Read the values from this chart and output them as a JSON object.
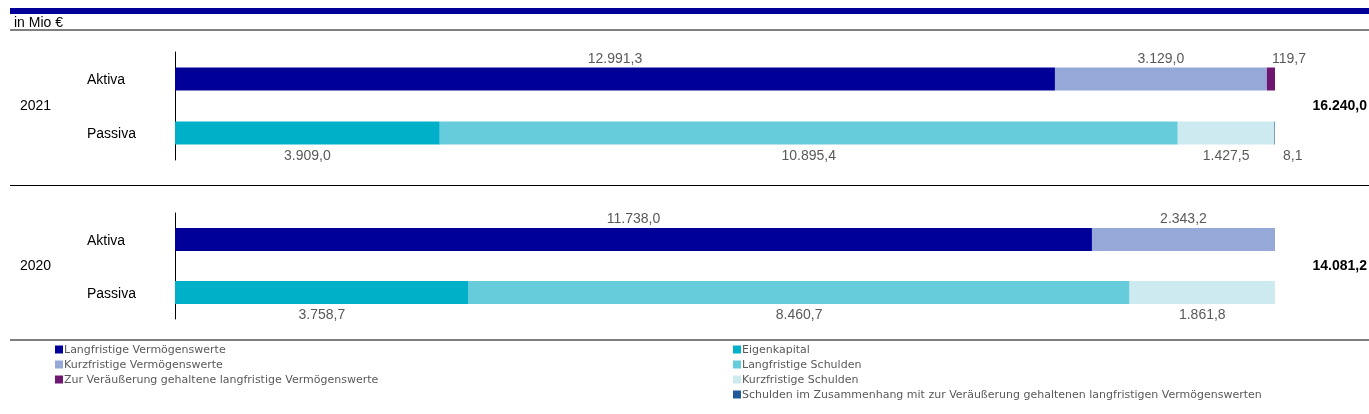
{
  "chart_data": [
    {
      "type": "bar",
      "orientation": "horizontal",
      "stacked": true,
      "subtitle": "in Mio €",
      "ylabel": "2021",
      "tick_labels": "y",
      "legend": false,
      "annotations": [
        "16.240,0"
      ],
      "categories": [
        "Aktiva",
        "Passiva"
      ],
      "series": [
        {
          "color": "#000099",
          "values": [
            12991.3,
            null
          ],
          "value_labels": [
            "12.991,3",
            null
          ]
        },
        {
          "color": "#96a8d8",
          "values": [
            3129.0,
            null
          ],
          "value_labels": [
            "3.129,0",
            null
          ]
        },
        {
          "color": "#6f1770",
          "values": [
            119.7,
            null
          ],
          "value_labels": [
            "119,7",
            null
          ]
        },
        {
          "color": "#00b0c8",
          "values": [
            null,
            3909.0
          ],
          "value_labels": [
            null,
            "3.909,0"
          ]
        },
        {
          "color": "#66ccdb",
          "values": [
            null,
            10895.4
          ],
          "value_labels": [
            null,
            "10.895,4"
          ]
        },
        {
          "color": "#cceaf0",
          "values": [
            null,
            1427.5
          ],
          "value_labels": [
            null,
            "1.427,5"
          ]
        },
        {
          "color": "#1f5b99",
          "values": [
            null,
            8.1
          ],
          "value_labels": [
            null,
            "8,1"
          ]
        }
      ]
    },
    {
      "type": "bar",
      "orientation": "horizontal",
      "stacked": true,
      "ylabel": "2020",
      "tick_labels": "y",
      "legend": "bottom",
      "annotations": [
        "14.081,2"
      ],
      "categories": [
        "Aktiva",
        "Passiva"
      ],
      "series": [
        {
          "name": "Langfristige Vermögenswerte",
          "color": "#000099",
          "values": [
            11738.0,
            null
          ],
          "value_labels": [
            "11.738,0",
            null
          ]
        },
        {
          "name": "Kurzfristige Vermögenswerte",
          "color": "#96a8d8",
          "values": [
            2343.2,
            null
          ],
          "value_labels": [
            "2.343,2",
            null
          ]
        },
        {
          "name": "Zur Veräußerung gehaltene langfristige Vermögenswerte",
          "color": "#6f1770",
          "values": [
            null,
            null
          ],
          "value_labels": [
            null,
            null
          ]
        },
        {
          "name": "Eigenkapital",
          "color": "#00b0c8",
          "values": [
            null,
            3758.7
          ],
          "value_labels": [
            null,
            "3.758,7"
          ]
        },
        {
          "name": "Langfristige Schulden",
          "color": "#66ccdb",
          "values": [
            null,
            8460.7
          ],
          "value_labels": [
            null,
            "8.460,7"
          ]
        },
        {
          "name": "Kurzfristige Schulden",
          "color": "#cceaf0",
          "values": [
            null,
            1861.8
          ],
          "value_labels": [
            null,
            "1.861,8"
          ]
        },
        {
          "name": "Schulden im Zusammenhang mit zur Veräußerung gehaltenen langfristigen Vermögenswerten",
          "color": "#1f5b99",
          "values": [
            null,
            null
          ],
          "value_labels": [
            null,
            null
          ]
        }
      ]
    }
  ]
}
